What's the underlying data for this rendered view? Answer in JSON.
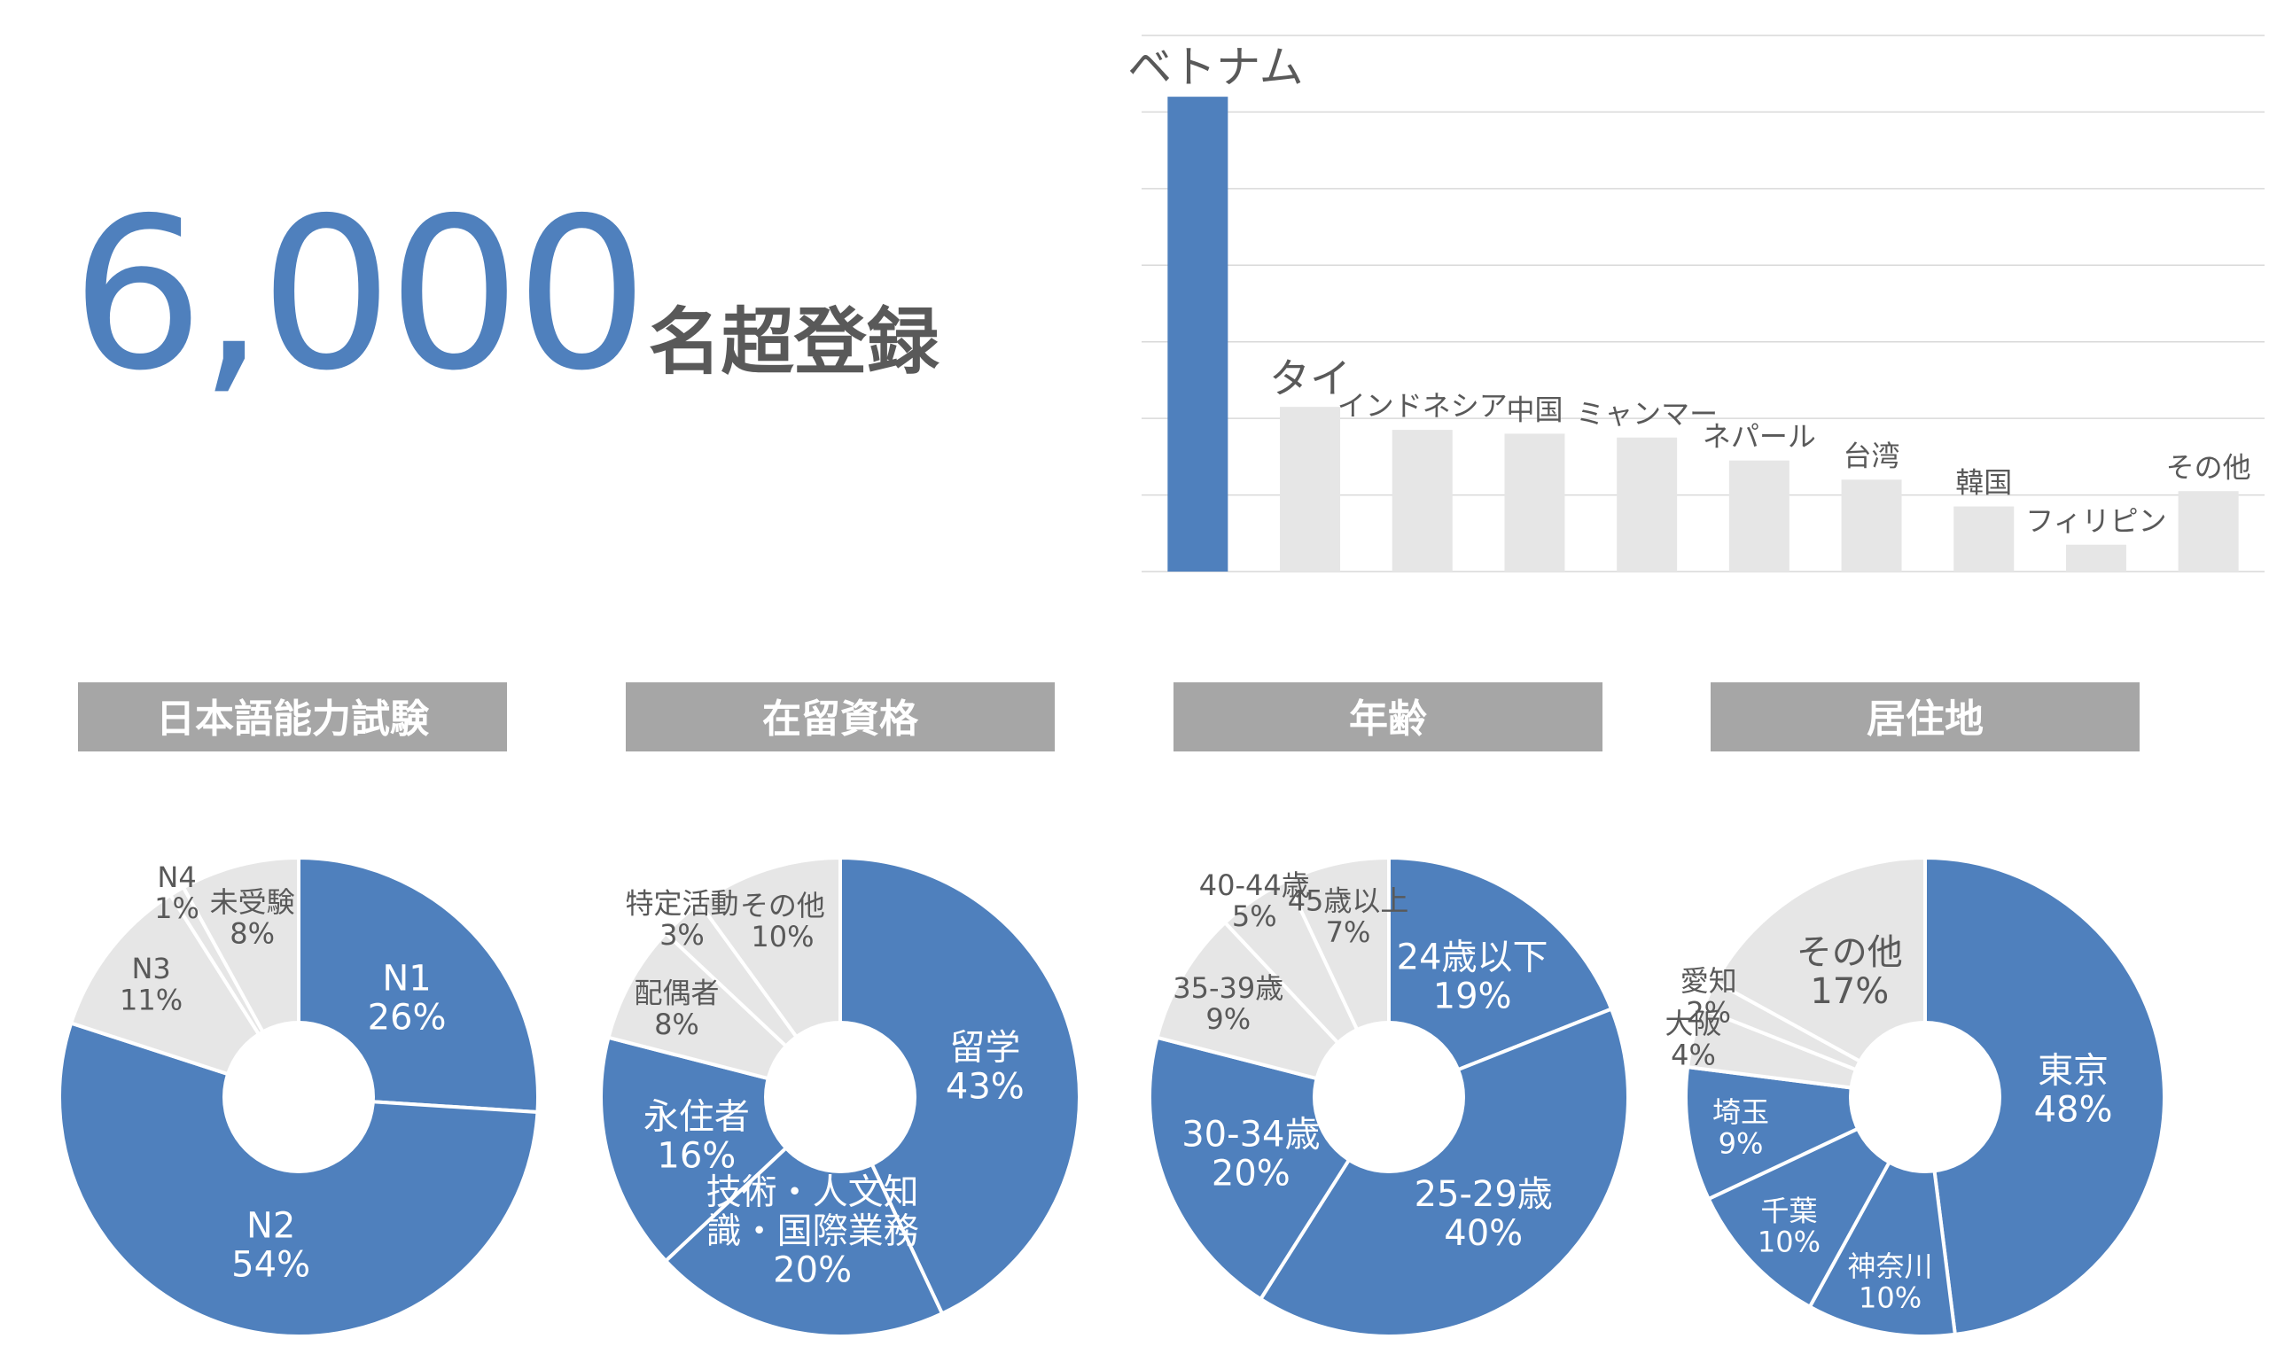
{
  "headline": {
    "number": "6,000",
    "suffix": "名超登録"
  },
  "colors": {
    "accent": "#4f80bd",
    "muted": "#e6e6e6",
    "header_bg": "#a6a6a6",
    "text": "#595959"
  },
  "chart_data": [
    {
      "type": "bar",
      "categories": [
        "ベトナム",
        "タイ",
        "インドネシア",
        "中国",
        "ミャンマー",
        "ネパール",
        "台湾",
        "韓国",
        "フィリピン",
        "その他"
      ],
      "values": [
        62,
        21.5,
        18.5,
        18,
        17.5,
        14.5,
        12,
        8.5,
        3.5,
        10.5
      ],
      "highlight_index": 0,
      "ylim": [
        0,
        70
      ],
      "grid": true,
      "axis_labels": false
    },
    {
      "type": "pie",
      "title": "日本語能力試験",
      "slices": [
        {
          "label": "N1",
          "value": 26,
          "display": "26%",
          "highlight": true
        },
        {
          "label": "N2",
          "value": 54,
          "display": "54%",
          "highlight": true
        },
        {
          "label": "N3",
          "value": 11,
          "display": "11%",
          "highlight": false
        },
        {
          "label": "N4",
          "value": 1,
          "display": "1%",
          "highlight": false
        },
        {
          "label": "未受験",
          "value": 8,
          "display": "8%",
          "highlight": false
        }
      ]
    },
    {
      "type": "pie",
      "title": "在留資格",
      "slices": [
        {
          "label": "留学",
          "value": 43,
          "display": "43%",
          "highlight": true
        },
        {
          "label": "技術・人文知識・国際業務",
          "value": 20,
          "display": "20%",
          "highlight": true
        },
        {
          "label": "永住者",
          "value": 16,
          "display": "16%",
          "highlight": true
        },
        {
          "label": "配偶者",
          "value": 8,
          "display": "8%",
          "highlight": false
        },
        {
          "label": "特定活動",
          "value": 3,
          "display": "3%",
          "highlight": false
        },
        {
          "label": "その他",
          "value": 10,
          "display": "10%",
          "highlight": false
        }
      ]
    },
    {
      "type": "pie",
      "title": "年齢",
      "slices": [
        {
          "label": "24歳以下",
          "value": 19,
          "display": "19%",
          "highlight": true
        },
        {
          "label": "25-29歳",
          "value": 40,
          "display": "40%",
          "highlight": true
        },
        {
          "label": "30-34歳",
          "value": 20,
          "display": "20%",
          "highlight": true
        },
        {
          "label": "35-39歳",
          "value": 9,
          "display": "9%",
          "highlight": false
        },
        {
          "label": "40-44歳",
          "value": 5,
          "display": "5%",
          "highlight": false
        },
        {
          "label": "45歳以上",
          "value": 7,
          "display": "7%",
          "highlight": false
        }
      ]
    },
    {
      "type": "pie",
      "title": "居住地",
      "slices": [
        {
          "label": "東京",
          "value": 48,
          "display": "48%",
          "highlight": true
        },
        {
          "label": "神奈川",
          "value": 10,
          "display": "10%",
          "highlight": true
        },
        {
          "label": "千葉",
          "value": 10,
          "display": "10%",
          "highlight": true
        },
        {
          "label": "埼玉",
          "value": 9,
          "display": "9%",
          "highlight": true
        },
        {
          "label": "大阪",
          "value": 4,
          "display": "4%",
          "highlight": false
        },
        {
          "label": "愛知",
          "value": 2,
          "display": "2%",
          "highlight": false
        },
        {
          "label": "その他",
          "value": 17,
          "display": "17%",
          "highlight": false
        }
      ]
    }
  ]
}
